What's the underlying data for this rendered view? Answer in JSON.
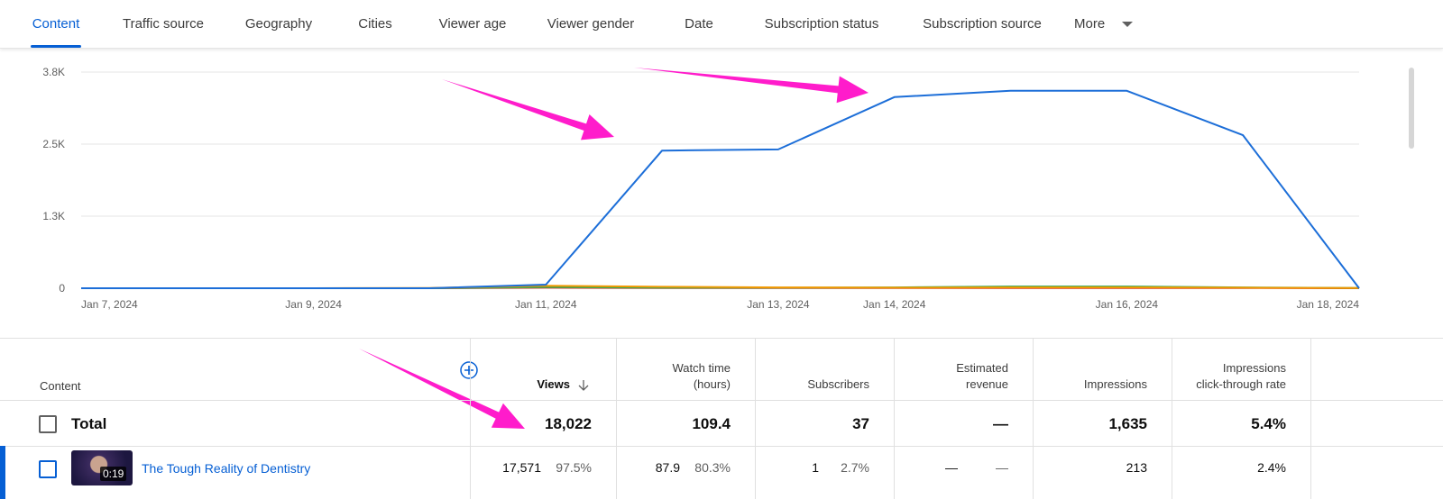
{
  "tabs": [
    "Content",
    "Traffic source",
    "Geography",
    "Cities",
    "Viewer age",
    "Viewer gender",
    "Date",
    "Subscription status",
    "Subscription source",
    "More"
  ],
  "chart_data": {
    "type": "line",
    "x": [
      "Jan 7, 2024",
      null,
      "Jan 9, 2024",
      null,
      "Jan 11, 2024",
      null,
      "Jan 13, 2024",
      "Jan 14, 2024",
      null,
      "Jan 16, 2024",
      null,
      "Jan 18, 2024"
    ],
    "series": [
      {
        "color": "#1c6ed8",
        "values": [
          0,
          0,
          0,
          0,
          63,
          2420,
          2440,
          3360,
          3470,
          3470,
          2690,
          0
        ]
      },
      {
        "color": "#f29900",
        "values": [
          0,
          0,
          0,
          5,
          45,
          25,
          15,
          10,
          15,
          15,
          10,
          5
        ]
      },
      {
        "color": "#34a853",
        "values": [
          0,
          0,
          0,
          0,
          20,
          10,
          10,
          15,
          30,
          30,
          15,
          5
        ]
      },
      {
        "color": "#d93025",
        "values": [
          0,
          0,
          0,
          0,
          10,
          5,
          5,
          5,
          5,
          5,
          5,
          0
        ]
      }
    ],
    "ylim": [
      0,
      3800
    ],
    "yticks": [
      0,
      {
        "value": 1267,
        "label": "1.3K"
      },
      {
        "value": 2533,
        "label": "2.5K"
      },
      {
        "value": 3800,
        "label": "3.8K"
      }
    ],
    "grid": true
  },
  "table": {
    "columns": [
      "Content",
      "Views",
      "Watch time (hours)",
      "Subscribers",
      "Estimated revenue",
      "Impressions",
      "Impressions click-through rate"
    ],
    "total": {
      "label": "Total",
      "cells": [
        "18,022",
        "109.4",
        "37",
        "—",
        "1,635",
        "5.4%"
      ]
    },
    "rows": [
      {
        "title": "The Tough Reality of Dentistry",
        "duration": "0:19",
        "cells": [
          [
            "17,571",
            "97.5%"
          ],
          [
            "87.9",
            "80.3%"
          ],
          [
            "1",
            "2.7%"
          ],
          [
            "—",
            "—"
          ],
          [
            "213"
          ],
          [
            "2.4%"
          ]
        ]
      }
    ]
  }
}
